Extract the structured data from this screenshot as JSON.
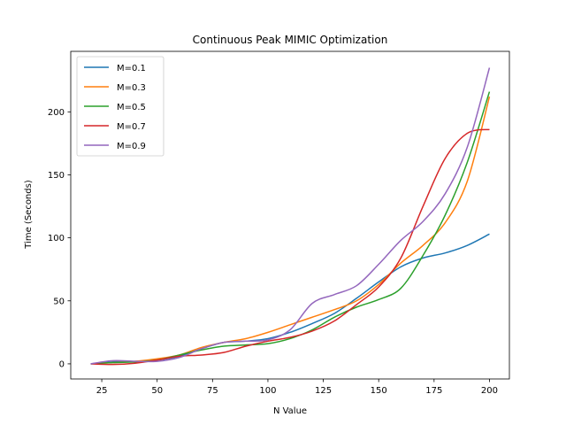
{
  "chart_data": {
    "type": "line",
    "title": "Continuous Peak MIMIC Optimization",
    "xlabel": "N Value",
    "ylabel": "Time (Seconds)",
    "xlim": [
      11,
      209
    ],
    "ylim": [
      -12,
      248
    ],
    "xticks": [
      25,
      50,
      75,
      100,
      125,
      150,
      175,
      200
    ],
    "yticks": [
      0,
      50,
      100,
      150,
      200
    ],
    "grid": false,
    "legend_position": "upper-left",
    "x": [
      20,
      30,
      40,
      50,
      60,
      70,
      80,
      90,
      100,
      110,
      120,
      130,
      140,
      150,
      160,
      170,
      180,
      190,
      200
    ],
    "series": [
      {
        "name": "M=0.1",
        "color": "#1f77b4",
        "values": [
          0,
          1.5,
          2,
          3,
          6,
          12,
          17,
          18,
          20,
          25,
          32,
          40,
          52,
          65,
          77,
          84,
          88,
          94,
          103
        ]
      },
      {
        "name": "M=0.3",
        "color": "#ff7f0e",
        "values": [
          0,
          1,
          2,
          4,
          7,
          13,
          17,
          20,
          25,
          31,
          37,
          43,
          50,
          63,
          80,
          94,
          112,
          145,
          212
        ]
      },
      {
        "name": "M=0.5",
        "color": "#2ca02c",
        "values": [
          0,
          1,
          1.5,
          3,
          7,
          11,
          14,
          15,
          16,
          20,
          27,
          37,
          45,
          51,
          60,
          86,
          118,
          160,
          216
        ]
      },
      {
        "name": "M=0.7",
        "color": "#d62728",
        "values": [
          0,
          -0.5,
          0.5,
          3,
          6,
          7,
          9,
          14,
          18,
          21,
          26,
          34,
          47,
          61,
          84,
          125,
          163,
          183,
          186
        ]
      },
      {
        "name": "M=0.9",
        "color": "#9467bd",
        "values": [
          0,
          2.5,
          2,
          2,
          5,
          12,
          17,
          18,
          19,
          27,
          48,
          55,
          62,
          79,
          98,
          113,
          135,
          172,
          235
        ]
      }
    ]
  }
}
